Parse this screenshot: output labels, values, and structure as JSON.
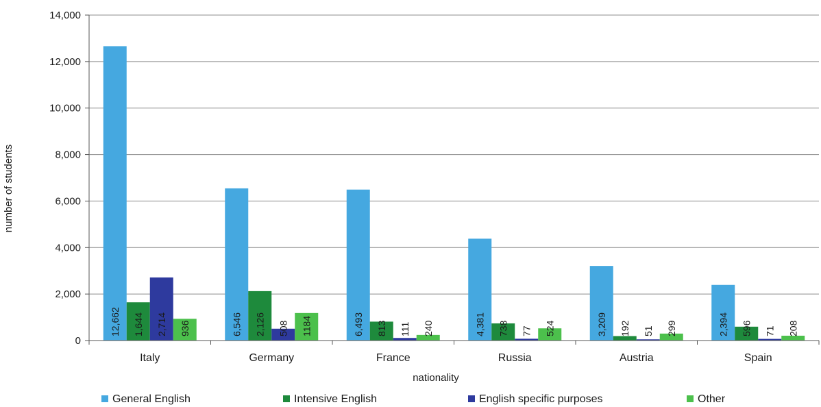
{
  "chart_data": {
    "type": "bar",
    "title": "",
    "xlabel": "nationality",
    "ylabel": "number of students",
    "ylim": [
      0,
      14000
    ],
    "yticks": [
      "0",
      "2,000",
      "4,000",
      "6,000",
      "8,000",
      "10,000",
      "12,000",
      "14,000"
    ],
    "ytick_values": [
      0,
      2000,
      4000,
      6000,
      8000,
      10000,
      12000,
      14000
    ],
    "grid": "horizontal",
    "legend": "bottom",
    "categories": [
      "Italy",
      "Germany",
      "France",
      "Russia",
      "Austria",
      "Spain"
    ],
    "series": [
      {
        "name": "General English",
        "color": "#45a8e0",
        "values": [
          12662,
          6546,
          6493,
          4381,
          3209,
          2394
        ],
        "labels": [
          "12,662",
          "6,546",
          "6,493",
          "4,381",
          "3,209",
          "2,394"
        ]
      },
      {
        "name": "Intensive English",
        "color": "#1e8a3c",
        "values": [
          1644,
          2126,
          813,
          738,
          192,
          596
        ],
        "labels": [
          "1,644",
          "2,126",
          "813",
          "738",
          "192",
          "596"
        ]
      },
      {
        "name": "English specific purposes",
        "color": "#2e3a9e",
        "values": [
          2714,
          508,
          111,
          77,
          51,
          71
        ],
        "labels": [
          "2,714",
          "508",
          "111",
          "77",
          "51",
          "71"
        ]
      },
      {
        "name": "Other",
        "color": "#4cc04c",
        "values": [
          936,
          1184,
          240,
          524,
          299,
          208
        ],
        "labels": [
          "936",
          "1184",
          "240",
          "524",
          "299",
          "208"
        ]
      }
    ]
  }
}
